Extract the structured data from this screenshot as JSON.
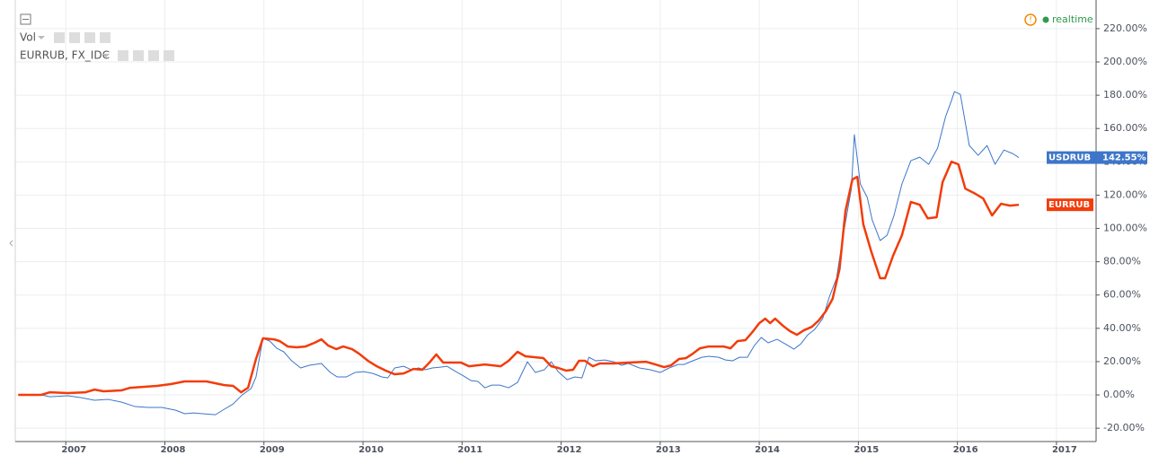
{
  "chart_data": {
    "type": "line",
    "indicators": [
      "Vol",
      "EURRUB, FX_IDC"
    ],
    "status": "realtime",
    "xlim": [
      2006.49,
      2017.4
    ],
    "xticks": [
      2007,
      2008,
      2009,
      2010,
      2011,
      2012,
      2013,
      2014,
      2015,
      2016,
      2017
    ],
    "ylim": [
      -28.0,
      237.2
    ],
    "yticks": [
      {
        "value": -20,
        "label": "-20.00%"
      },
      {
        "value": 0,
        "label": "0.00%"
      },
      {
        "value": 20,
        "label": "20.00%"
      },
      {
        "value": 40,
        "label": "40.00%"
      },
      {
        "value": 60,
        "label": "60.00%"
      },
      {
        "value": 80,
        "label": "80.00%"
      },
      {
        "value": 100,
        "label": "100.00%"
      },
      {
        "value": 120,
        "label": "120.00%"
      },
      {
        "value": 140,
        "label": "140.00%"
      },
      {
        "value": 160,
        "label": "160.00%"
      },
      {
        "value": 180,
        "label": "180.00%"
      },
      {
        "value": 200,
        "label": "200.00%"
      },
      {
        "value": 220,
        "label": "220.00%"
      }
    ],
    "grid": true,
    "series": [
      {
        "name": "USDRUB",
        "color": "#3d76c9",
        "width": 1,
        "x": [
          2006.52,
          2006.75,
          2006.84,
          2007.02,
          2007.15,
          2007.29,
          2007.43,
          2007.56,
          2007.7,
          2007.83,
          2007.97,
          2008.11,
          2008.2,
          2008.29,
          2008.38,
          2008.51,
          2008.6,
          2008.69,
          2008.78,
          2008.87,
          2008.92,
          2008.99,
          2009.06,
          2009.13,
          2009.2,
          2009.28,
          2009.37,
          2009.46,
          2009.58,
          2009.67,
          2009.74,
          2009.83,
          2009.92,
          2010.01,
          2010.1,
          2010.19,
          2010.25,
          2010.32,
          2010.41,
          2010.49,
          2010.56,
          2010.63,
          2010.7,
          2010.78,
          2010.85,
          2010.92,
          2011.0,
          2011.09,
          2011.16,
          2011.23,
          2011.3,
          2011.38,
          2011.47,
          2011.56,
          2011.66,
          2011.74,
          2011.83,
          2011.9,
          2011.97,
          2012.06,
          2012.14,
          2012.21,
          2012.28,
          2012.35,
          2012.44,
          2012.53,
          2012.61,
          2012.68,
          2012.79,
          2012.9,
          2013.0,
          2013.09,
          2013.18,
          2013.24,
          2013.33,
          2013.42,
          2013.49,
          2013.59,
          2013.66,
          2013.73,
          2013.8,
          2013.88,
          2013.95,
          2014.02,
          2014.09,
          2014.18,
          2014.26,
          2014.35,
          2014.42,
          2014.49,
          2014.56,
          2014.64,
          2014.71,
          2014.78,
          2014.85,
          2014.93,
          2014.96,
          2015.02,
          2015.09,
          2015.14,
          2015.22,
          2015.29,
          2015.36,
          2015.44,
          2015.53,
          2015.62,
          2015.71,
          2015.8,
          2015.88,
          2015.94,
          2015.97,
          2016.03,
          2016.12,
          2016.21,
          2016.3,
          2016.38,
          2016.47,
          2016.56,
          2016.62
        ],
        "values": [
          0,
          0,
          -1.1,
          -0.5,
          -1.6,
          -3.2,
          -2.7,
          -4.3,
          -7.0,
          -7.5,
          -7.5,
          -9.2,
          -11.3,
          -10.8,
          -11.3,
          -11.9,
          -8.6,
          -5.4,
          0,
          3.8,
          10.8,
          34.0,
          32.3,
          28.0,
          25.9,
          20.5,
          16.2,
          17.8,
          18.9,
          13.5,
          10.8,
          10.8,
          13.5,
          14.0,
          12.9,
          10.8,
          10.2,
          16.2,
          17.2,
          15.1,
          16.2,
          15.1,
          16.2,
          16.7,
          17.2,
          14.6,
          11.9,
          8.6,
          8.1,
          4.3,
          5.9,
          5.9,
          4.3,
          7.5,
          19.9,
          13.5,
          15.1,
          19.9,
          14.0,
          9.2,
          10.8,
          10.2,
          22.6,
          20.5,
          21.0,
          19.9,
          17.8,
          18.9,
          16.2,
          15.1,
          13.5,
          16.2,
          18.3,
          18.3,
          20.5,
          22.6,
          23.2,
          22.6,
          21.0,
          20.5,
          22.6,
          22.6,
          29.6,
          34.5,
          31.3,
          33.4,
          30.7,
          27.5,
          30.7,
          36.1,
          39.4,
          45.8,
          59.3,
          70.1,
          97.0,
          124.0,
          156.3,
          126.7,
          118.6,
          105.1,
          92.7,
          95.9,
          107.8,
          126.7,
          140.7,
          142.8,
          138.5,
          148.2,
          167.0,
          176.8,
          182.2,
          180.5,
          149.8,
          143.9,
          149.8,
          138.5,
          147.1,
          144.9,
          142.55
        ],
        "value_labels": [
          null,
          null,
          null,
          null,
          null,
          null,
          null,
          null,
          null,
          null,
          null,
          null,
          null,
          null,
          null,
          null,
          null,
          null,
          null,
          null,
          null,
          null,
          null,
          null,
          null,
          null,
          null,
          null,
          null,
          null,
          null,
          null,
          null,
          null,
          null,
          null,
          null,
          null,
          null,
          null,
          null,
          null,
          null,
          null,
          null,
          null,
          null,
          null,
          null,
          null,
          null,
          null,
          null,
          null,
          null,
          null,
          null,
          null,
          null,
          null,
          null,
          null,
          null,
          null,
          null,
          null,
          null,
          null,
          null,
          null,
          null,
          null,
          null,
          null,
          null,
          null,
          null,
          null,
          null,
          null,
          null,
          null,
          null,
          null,
          null,
          null,
          null,
          null,
          null,
          null,
          null,
          null,
          null,
          null,
          null,
          null,
          null,
          null,
          null,
          null,
          null,
          null,
          null,
          null,
          null,
          null,
          null,
          null,
          null,
          null,
          null,
          null,
          null,
          null,
          null,
          null,
          null,
          null,
          "142.55%"
        ]
      },
      {
        "name": "EURRUB",
        "color": "#f23c0a",
        "width": 2.5,
        "x": [
          2006.52,
          2006.75,
          2006.84,
          2007.02,
          2007.2,
          2007.29,
          2007.38,
          2007.56,
          2007.65,
          2007.92,
          2008.06,
          2008.2,
          2008.42,
          2008.6,
          2008.69,
          2008.77,
          2008.84,
          2008.92,
          2008.99,
          2009.1,
          2009.16,
          2009.24,
          2009.33,
          2009.42,
          2009.51,
          2009.58,
          2009.65,
          2009.73,
          2009.8,
          2009.89,
          2009.96,
          2010.05,
          2010.14,
          2010.23,
          2010.32,
          2010.41,
          2010.51,
          2010.6,
          2010.67,
          2010.74,
          2010.81,
          2010.99,
          2011.07,
          2011.23,
          2011.39,
          2011.47,
          2011.56,
          2011.64,
          2011.82,
          2011.9,
          2011.97,
          2012.05,
          2012.12,
          2012.18,
          2012.24,
          2012.32,
          2012.39,
          2012.53,
          2012.68,
          2012.86,
          2012.95,
          2013.04,
          2013.11,
          2013.19,
          2013.26,
          2013.33,
          2013.4,
          2013.49,
          2013.64,
          2013.71,
          2013.78,
          2013.86,
          2013.93,
          2014.0,
          2014.06,
          2014.11,
          2014.16,
          2014.24,
          2014.31,
          2014.38,
          2014.45,
          2014.53,
          2014.6,
          2014.67,
          2014.74,
          2014.81,
          2014.87,
          2014.94,
          2014.99,
          2015.05,
          2015.13,
          2015.22,
          2015.27,
          2015.35,
          2015.44,
          2015.53,
          2015.62,
          2015.7,
          2015.79,
          2015.85,
          2015.94,
          2016.01,
          2016.08,
          2016.17,
          2016.26,
          2016.35,
          2016.44,
          2016.53,
          2016.62
        ],
        "values": [
          0,
          0,
          1.6,
          1.1,
          1.6,
          3.2,
          2.2,
          2.7,
          4.3,
          5.4,
          6.5,
          8.1,
          8.1,
          5.9,
          5.4,
          1.6,
          4.3,
          21.6,
          34.0,
          33.4,
          32.3,
          29.1,
          28.6,
          29.1,
          31.3,
          33.4,
          29.6,
          27.5,
          29.1,
          27.5,
          24.8,
          20.5,
          17.2,
          14.6,
          12.4,
          12.9,
          15.6,
          15.1,
          19.4,
          24.3,
          19.4,
          19.4,
          17.2,
          18.3,
          17.2,
          20.5,
          25.9,
          23.2,
          22.1,
          17.2,
          16.2,
          14.6,
          15.1,
          20.5,
          20.5,
          17.2,
          18.9,
          18.9,
          19.4,
          19.9,
          18.3,
          16.7,
          17.8,
          21.6,
          22.1,
          24.8,
          28.0,
          29.1,
          29.1,
          28.0,
          32.3,
          32.9,
          37.7,
          43.1,
          45.8,
          43.1,
          45.8,
          41.5,
          38.3,
          36.1,
          38.8,
          40.9,
          44.7,
          50.1,
          57.7,
          75.5,
          110.5,
          129.4,
          131.0,
          102.5,
          86.2,
          70.1,
          70.1,
          83.5,
          95.9,
          115.9,
          114.2,
          106.1,
          106.7,
          127.7,
          140.1,
          138.5,
          123.9,
          121.2,
          118.0,
          107.8,
          114.8,
          113.7,
          114.2
        ]
      }
    ]
  }
}
